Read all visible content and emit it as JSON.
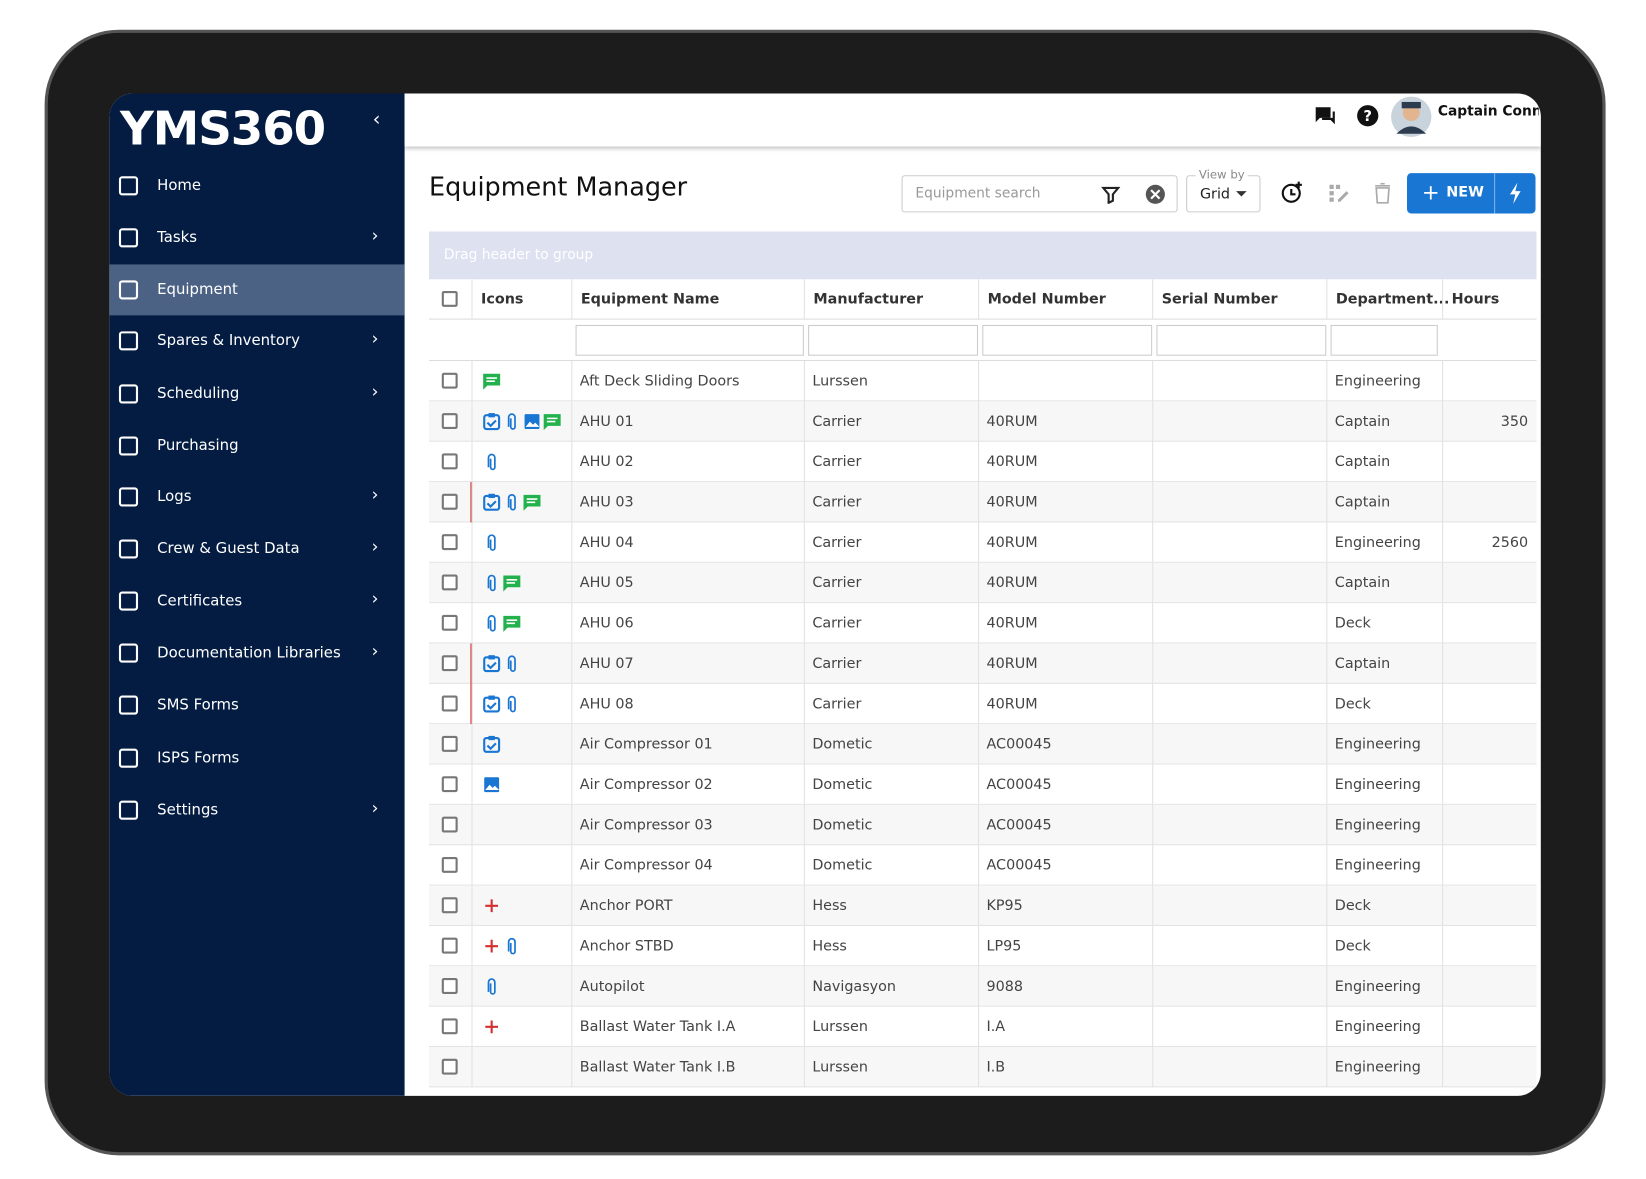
{
  "sidebar": {
    "logo": "YMS360",
    "nav": [
      "Home",
      "Tasks",
      "Equipment",
      "Spares & Inventory",
      "Scheduling",
      "Purchasing",
      "Logs",
      "Crew & Guest Data",
      "Certificates",
      "Documentation Libraries",
      "SMS Forms",
      "ISPS Forms",
      "Settings"
    ],
    "active": 2
  },
  "header": {
    "user": "Captain Connor"
  },
  "page": {
    "title": "Equipment Manager",
    "search_placeholder": "Equipment search",
    "view_by_label": "View by",
    "view_by": "Grid",
    "new_button": "NEW"
  },
  "table": {
    "group_hint": "Drag header to group",
    "columns": [
      "Icons",
      "Equipment Name",
      "Manufacturer",
      "Model Number",
      "Serial Number",
      "Department...",
      "Hours"
    ],
    "rows": [
      [
        "Aft Deck Sliding Doors",
        "Lurssen",
        null,
        null,
        "Engineering",
        null
      ],
      [
        "AHU 01",
        "Carrier",
        "40RUM",
        null,
        "Captain",
        350
      ],
      [
        "AHU 02",
        "Carrier",
        "40RUM",
        null,
        "Captain",
        null
      ],
      [
        "AHU 03",
        "Carrier",
        "40RUM",
        null,
        "Captain",
        null
      ],
      [
        "AHU 04",
        "Carrier",
        "40RUM",
        null,
        "Engineering",
        2560
      ],
      [
        "AHU 05",
        "Carrier",
        "40RUM",
        null,
        "Captain",
        null
      ],
      [
        "AHU 06",
        "Carrier",
        "40RUM",
        null,
        "Deck",
        null
      ],
      [
        "AHU 07",
        "Carrier",
        "40RUM",
        null,
        "Captain",
        null
      ],
      [
        "AHU 08",
        "Carrier",
        "40RUM",
        null,
        "Deck",
        null
      ],
      [
        "Air Compressor 01",
        "Dometic",
        "AC00045",
        null,
        "Engineering",
        null
      ],
      [
        "Air Compressor 02",
        "Dometic",
        "AC00045",
        null,
        "Engineering",
        null
      ],
      [
        "Air Compressor 03",
        "Dometic",
        "AC00045",
        null,
        "Engineering",
        null
      ],
      [
        "Air Compressor 04",
        "Dometic",
        "AC00045",
        null,
        "Engineering",
        null
      ],
      [
        "Anchor PORT",
        "Hess",
        "KP95",
        null,
        "Deck",
        null
      ],
      [
        "Anchor STBD",
        "Hess",
        "LP95",
        null,
        "Deck",
        null
      ],
      [
        "Autopilot",
        "Navigasyon",
        "9088",
        null,
        "Engineering",
        null
      ],
      [
        "Ballast Water Tank I.A",
        "Lurssen",
        "I.A",
        null,
        "Engineering",
        null
      ],
      [
        "Ballast Water Tank I.B",
        "Lurssen",
        "I.B",
        null,
        "Engineering",
        null
      ]
    ]
  }
}
